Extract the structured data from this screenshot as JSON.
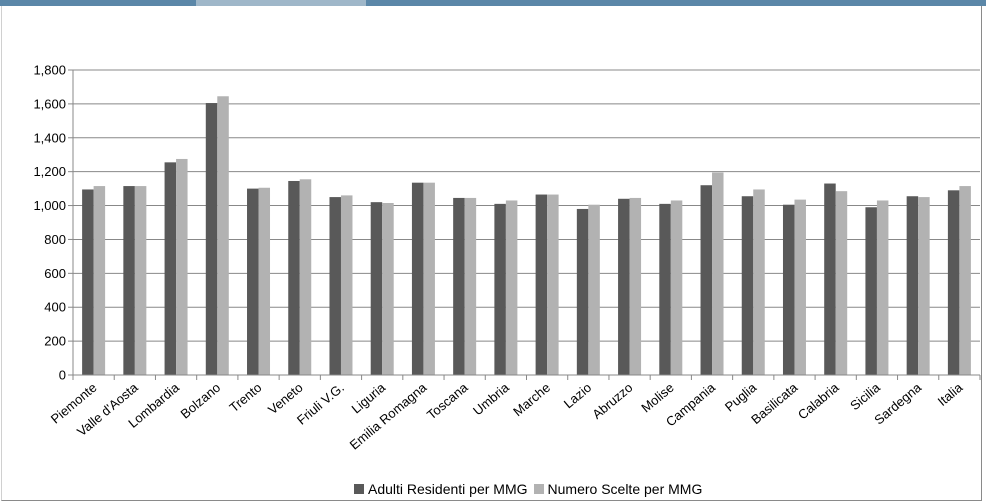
{
  "chart_data": {
    "type": "bar",
    "title": "",
    "xlabel": "",
    "ylabel": "",
    "ylim": [
      0,
      1800
    ],
    "yticks": [
      0,
      200,
      400,
      600,
      800,
      1000,
      1200,
      1400,
      1600,
      1800
    ],
    "ytick_labels": [
      "0",
      "200",
      "400",
      "600",
      "800",
      "1,000",
      "1,200",
      "1,400",
      "1,600",
      "1,800"
    ],
    "grid": true,
    "legend_position": "bottom",
    "categories": [
      "Piemonte",
      "Valle d'Aosta",
      "Lombardia",
      "Bolzano",
      "Trento",
      "Veneto",
      "Friuli V.G.",
      "Liguria",
      "Emilia Romagna",
      "Toscana",
      "Umbria",
      "Marche",
      "Lazio",
      "Abruzzo",
      "Molise",
      "Campania",
      "Puglia",
      "Basilicata",
      "Calabria",
      "Sicilia",
      "Sardegna",
      "Italia"
    ],
    "series": [
      {
        "name": "Adulti Residenti per MMG",
        "color": "#595959",
        "values": [
          1095,
          1115,
          1255,
          1605,
          1100,
          1145,
          1050,
          1020,
          1135,
          1045,
          1010,
          1065,
          980,
          1040,
          1010,
          1120,
          1055,
          1005,
          1130,
          990,
          1055,
          1090
        ]
      },
      {
        "name": "Numero Scelte per MMG",
        "color": "#b2b2b2",
        "values": [
          1115,
          1115,
          1275,
          1645,
          1105,
          1155,
          1060,
          1015,
          1135,
          1045,
          1030,
          1065,
          1005,
          1045,
          1030,
          1195,
          1095,
          1035,
          1085,
          1030,
          1050,
          1115
        ]
      }
    ]
  }
}
